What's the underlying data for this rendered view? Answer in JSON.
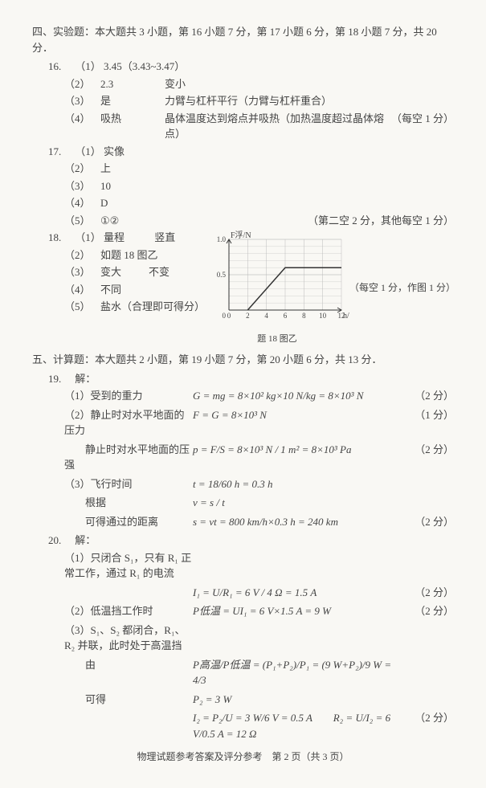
{
  "section4": {
    "header": "四、实验题：本大题共 3 小题，第 16 小题 7 分，第 17 小题 6 分，第 18 小题 7 分，共 20 分．",
    "q16": {
      "num": "16.",
      "rows": [
        {
          "label": "（1）",
          "content": "3.45（3.43~3.47）",
          "extra": "",
          "note": ""
        },
        {
          "label": "（2）",
          "content": "2.3",
          "extra": "变小",
          "note": ""
        },
        {
          "label": "（3）",
          "content": "是",
          "extra": "力臂与杠杆平行（力臂与杠杆重合）",
          "note": ""
        },
        {
          "label": "（4）",
          "content": "吸热",
          "extra": "晶体温度达到熔点并吸热（加热温度超过晶体熔点）",
          "note": "（每空 1 分）"
        }
      ]
    },
    "q17": {
      "num": "17.",
      "rows": [
        {
          "label": "（1）",
          "content": "实像",
          "note": ""
        },
        {
          "label": "（2）",
          "content": "上",
          "note": ""
        },
        {
          "label": "（3）",
          "content": "10",
          "note": ""
        },
        {
          "label": "（4）",
          "content": "D",
          "note": ""
        },
        {
          "label": "（5）",
          "content": "①②",
          "note": "（第二空 2 分，其他每空 1 分）"
        }
      ]
    },
    "q18": {
      "num": "18.",
      "left_rows": [
        {
          "label": "（1）",
          "content": "量程",
          "extra": "竖直"
        },
        {
          "label": "（2）",
          "content": "如题 18 图乙",
          "extra": ""
        },
        {
          "label": "（3）",
          "content": "变大",
          "extra": "不变"
        },
        {
          "label": "（4）",
          "content": "不同",
          "extra": ""
        },
        {
          "label": "（5）",
          "content": "盐水（合理即可得分）",
          "extra": ""
        }
      ],
      "right_note": "（每空 1 分，作图 1 分）",
      "chart": {
        "ylabel": "F浮/N",
        "xlabel": "h/cm",
        "caption": "题 18 图乙",
        "xlim": [
          0,
          12
        ],
        "ylim": [
          0,
          1.0
        ],
        "xticks": [
          0,
          2,
          4,
          6,
          8,
          10,
          12
        ],
        "yticks": [
          0,
          0.5,
          1.0
        ],
        "points": [
          [
            2,
            0
          ],
          [
            6,
            0.6
          ],
          [
            12,
            0.6
          ]
        ],
        "grid_color": "#bbb",
        "line_color": "#333",
        "bg": "#f9f8f4"
      }
    }
  },
  "section5": {
    "header": "五、计算题：本大题共 2 小题，第 19 小题 7 分，第 20 小题 6 分，共 13 分．",
    "q19": {
      "num": "19.",
      "intro": "解：",
      "rows": [
        {
          "desc": "（1）受到的重力",
          "formula": "G = mg = 8×10² kg×10 N/kg = 8×10³ N",
          "score": "（2 分）"
        },
        {
          "desc": "（2）静止时对水平地面的压力",
          "formula": "F = G = 8×10³ N",
          "score": "（1 分）"
        },
        {
          "desc": "　　静止时对水平地面的压强",
          "formula": "p = F/S = 8×10³ N / 1 m² = 8×10³ Pa",
          "score": "（2 分）"
        },
        {
          "desc": "（3）飞行时间",
          "formula": "t = 18/60 h = 0.3 h",
          "score": ""
        },
        {
          "desc": "　　根据",
          "formula": "v = s / t",
          "score": ""
        },
        {
          "desc": "　　可得通过的距离",
          "formula": "s = vt = 800 km/h×0.3 h = 240 km",
          "score": "（2 分）"
        }
      ]
    },
    "q20": {
      "num": "20.",
      "intro": "解：",
      "rows": [
        {
          "desc": "（1）只闭合 S₁，只有 R₁ 正常工作，通过 R₁ 的电流",
          "formula": "",
          "score": ""
        },
        {
          "desc": "",
          "formula": "I₁ = U/R₁ = 6 V / 4 Ω = 1.5 A",
          "score": "（2 分）"
        },
        {
          "desc": "（2）低温挡工作时",
          "formula": "P低温 = UI₁ = 6 V×1.5 A = 9 W",
          "score": "（2 分）"
        },
        {
          "desc": "（3）S₁、S₂ 都闭合，R₁、R₂ 并联，此时处于高温挡",
          "formula": "",
          "score": ""
        },
        {
          "desc": "　　由",
          "formula": "P高温/P低温 = (P₁+P₂)/P₁ = (9 W+P₂)/9 W = 4/3",
          "score": ""
        },
        {
          "desc": "　　可得",
          "formula": "P₂ = 3 W",
          "score": ""
        },
        {
          "desc": "",
          "formula": "I₂ = P₂/U = 3 W/6 V = 0.5 A　　R₂ = U/I₂ = 6 V/0.5 A = 12 Ω",
          "score": "（2 分）"
        }
      ]
    }
  },
  "footer": "物理试题参考答案及评分参考　第 2 页（共 3 页）"
}
